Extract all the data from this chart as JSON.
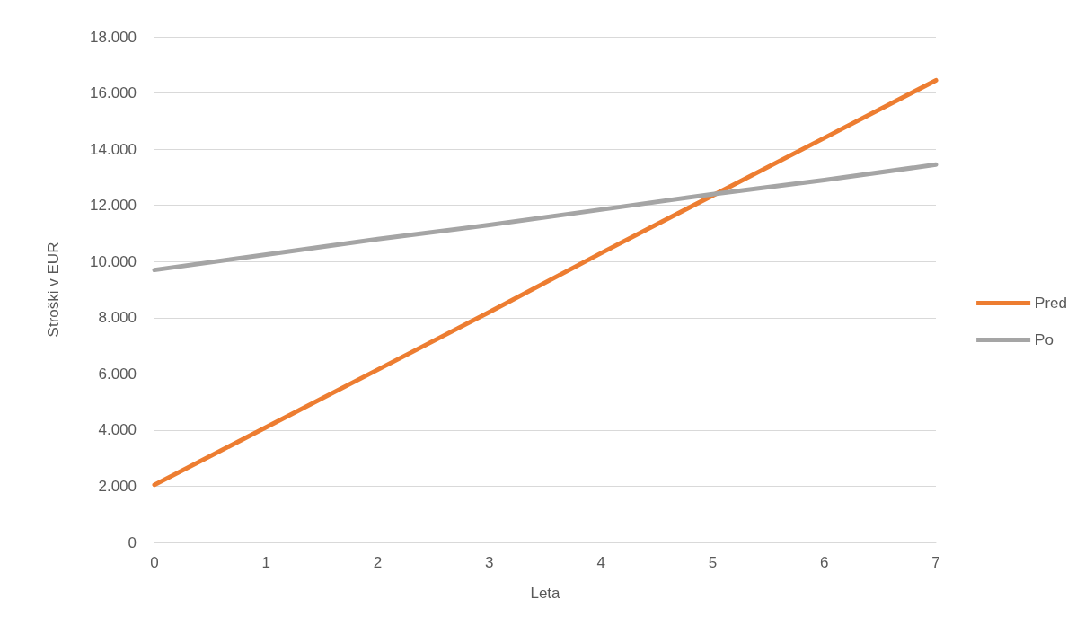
{
  "chart_data": {
    "type": "line",
    "xlabel": "Leta",
    "ylabel": "Stroški v EUR",
    "x": [
      0,
      1,
      2,
      3,
      4,
      5,
      6,
      7
    ],
    "series": [
      {
        "name": "Pred",
        "color": "#ed7d31",
        "values": [
          2050,
          4100,
          6150,
          8200,
          10300,
          12350,
          14400,
          16450
        ]
      },
      {
        "name": "Po",
        "color": "#a5a5a5",
        "values": [
          9700,
          10250,
          10800,
          11300,
          11850,
          12400,
          12900,
          13450
        ]
      }
    ],
    "xlim": [
      0,
      7
    ],
    "xticks": [
      0,
      1,
      2,
      3,
      4,
      5,
      6,
      7
    ],
    "ylim": [
      0,
      18000
    ],
    "yticks": [
      0,
      {
        "value": 2000,
        "label": "2.000"
      },
      {
        "value": 4000,
        "label": "4.000"
      },
      {
        "value": 6000,
        "label": "6.000"
      },
      {
        "value": 8000,
        "label": "8.000"
      },
      {
        "value": 10000,
        "label": "10.000"
      },
      {
        "value": 12000,
        "label": "12.000"
      },
      {
        "value": 14000,
        "label": "14.000"
      },
      {
        "value": 16000,
        "label": "16.000"
      },
      {
        "value": 18000,
        "label": "18.000"
      }
    ],
    "grid": "y",
    "legend": "right",
    "marker": "none",
    "line_style": "solid"
  }
}
